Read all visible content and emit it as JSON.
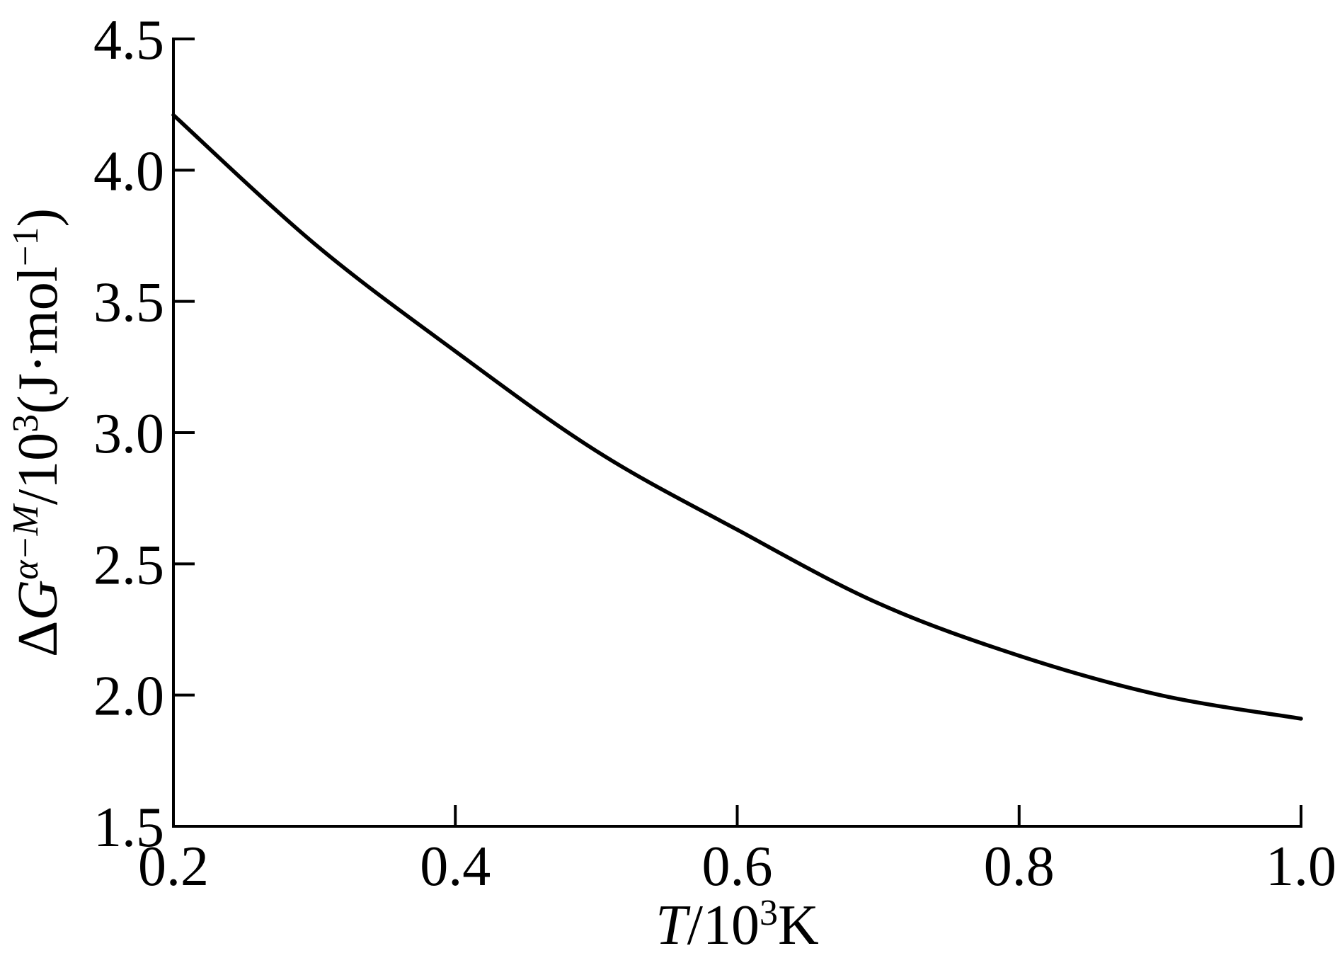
{
  "figure": {
    "background_color": "#ffffff",
    "axis_color": "#000000",
    "curve_color": "#000000"
  },
  "chart_data": {
    "type": "line",
    "title": "",
    "xlabel": "T/10³K",
    "ylabel": "ΔGᵅ⁻ᴹ/10³(J·mol⁻¹)",
    "xlabel_parts": [
      {
        "text": "T",
        "italic": true
      },
      {
        "text": "/10"
      },
      {
        "text": "3",
        "sup": true
      },
      {
        "text": "K"
      }
    ],
    "ylabel_parts": [
      {
        "text": "Δ"
      },
      {
        "text": "G",
        "italic": true
      },
      {
        "text": "α−M",
        "sup": true,
        "italic": true
      },
      {
        "text": "/10"
      },
      {
        "text": "3",
        "sup": true
      },
      {
        "text": "(J·mol"
      },
      {
        "text": "−1",
        "sup": true
      },
      {
        "text": ")"
      }
    ],
    "xlim": [
      0.2,
      1.0
    ],
    "ylim": [
      1.5,
      4.5
    ],
    "x_ticks": [
      0.2,
      0.4,
      0.6,
      0.8,
      1.0
    ],
    "x_tick_labels": [
      "0.2",
      "0.4",
      "0.6",
      "0.8",
      "1.0"
    ],
    "y_ticks": [
      1.5,
      2.0,
      2.5,
      3.0,
      3.5,
      4.0,
      4.5
    ],
    "y_tick_labels": [
      "1.5",
      "2.0",
      "2.5",
      "3.0",
      "3.5",
      "4.0",
      "4.5"
    ],
    "grid": false,
    "legend": "none",
    "series": [
      {
        "x": [
          0.2,
          0.3,
          0.4,
          0.5,
          0.6,
          0.7,
          0.8,
          0.9,
          1.0
        ],
        "y": [
          4.21,
          3.72,
          3.31,
          2.93,
          2.63,
          2.35,
          2.15,
          2.0,
          1.91
        ]
      }
    ]
  }
}
